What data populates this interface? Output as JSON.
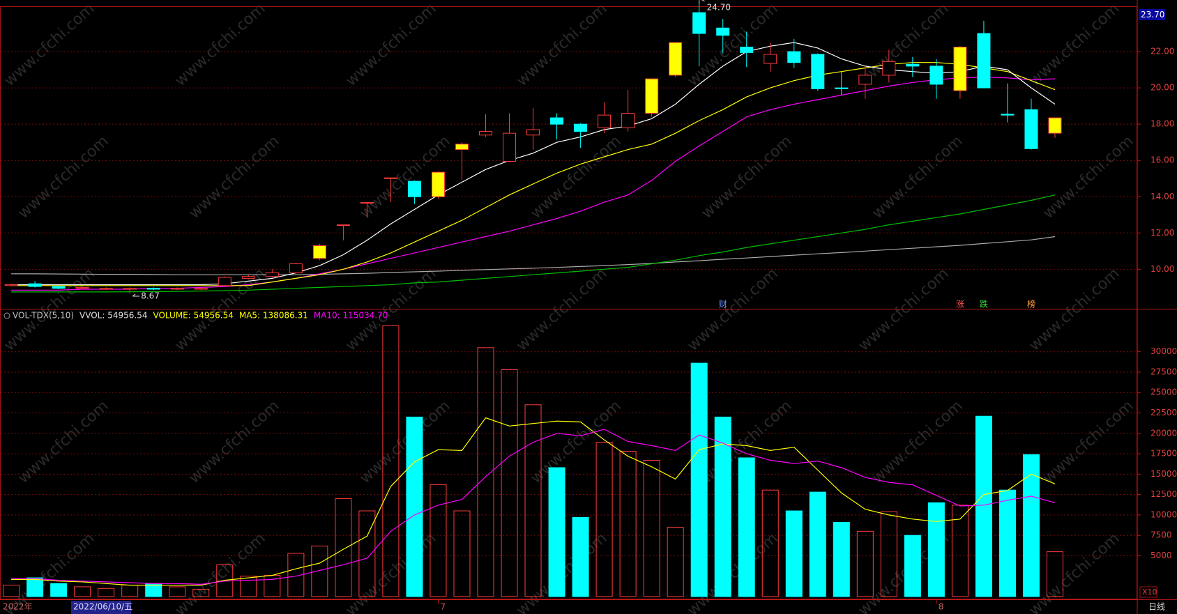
{
  "chart_data": [
    {
      "type": "candlestick",
      "top_label": "23.70",
      "ylim": [
        7.9,
        24.5
      ],
      "yticks": [
        {
          "value": 10,
          "label": "10.00"
        },
        {
          "value": 12,
          "label": "12.00"
        },
        {
          "value": 14,
          "label": "14.00"
        },
        {
          "value": 16,
          "label": "16.00"
        },
        {
          "value": 18,
          "label": "18.00"
        },
        {
          "value": 20,
          "label": "20.00"
        },
        {
          "value": 22,
          "label": "22.00"
        }
      ],
      "grid": true,
      "up_color": "#ff3c3c",
      "open": [
        9.1,
        9.2,
        9.05,
        8.95,
        8.9,
        8.9,
        8.95,
        8.9,
        8.9,
        9.1,
        9.5,
        9.6,
        9.8,
        10.6,
        12.45,
        13.68,
        15.04,
        14.85,
        14.0,
        16.6,
        17.4,
        15.95,
        17.4,
        18.35,
        18.0,
        17.8,
        17.8,
        18.6,
        20.7,
        24.15,
        23.3,
        22.25,
        21.35,
        22.0,
        21.85,
        20.0,
        20.2,
        20.7,
        21.3,
        21.2,
        19.85,
        23.0,
        18.55,
        18.8,
        17.5
      ],
      "high": [
        9.2,
        9.35,
        9.1,
        9.05,
        9.0,
        9.0,
        9.0,
        9.0,
        9.0,
        9.6,
        9.7,
        10.0,
        10.35,
        11.4,
        12.45,
        13.7,
        15.05,
        14.9,
        15.4,
        17.0,
        18.55,
        18.6,
        18.9,
        18.6,
        18.05,
        19.2,
        19.9,
        20.5,
        22.5,
        24.7,
        23.8,
        23.1,
        22.5,
        22.7,
        21.9,
        20.9,
        21.2,
        22.1,
        21.7,
        21.6,
        22.3,
        23.7,
        20.25,
        19.4,
        18.35
      ],
      "low": [
        9.05,
        9.0,
        8.9,
        8.9,
        8.85,
        8.67,
        8.85,
        8.85,
        8.85,
        9.05,
        9.45,
        9.55,
        9.75,
        10.5,
        11.6,
        12.85,
        13.7,
        13.6,
        13.9,
        14.95,
        17.3,
        15.9,
        16.6,
        17.15,
        16.7,
        17.5,
        17.6,
        18.4,
        20.6,
        21.2,
        21.9,
        21.15,
        20.9,
        21.1,
        19.85,
        19.6,
        19.4,
        20.3,
        20.6,
        19.4,
        19.4,
        20.0,
        18.1,
        16.6,
        17.25
      ],
      "close": [
        9.15,
        9.05,
        8.95,
        9.0,
        8.95,
        8.95,
        8.9,
        8.95,
        8.95,
        9.55,
        9.6,
        9.8,
        10.3,
        11.3,
        12.45,
        13.68,
        15.04,
        14.0,
        15.35,
        16.9,
        17.6,
        17.5,
        17.7,
        18.0,
        17.6,
        18.5,
        18.6,
        20.5,
        22.5,
        23.0,
        22.9,
        21.95,
        21.85,
        21.4,
        19.95,
        19.95,
        20.7,
        21.45,
        21.2,
        20.2,
        22.25,
        20.0,
        18.5,
        16.65,
        18.35
      ],
      "colors": [
        "#ff3c3c",
        "#00ffff",
        "#00ffff",
        "#ff3c3c",
        "#ff3c3c",
        "#ff3c3c",
        "#00ffff",
        "#ff3c3c",
        "#ff3c3c",
        "#ff3c3c",
        "#ff3c3c",
        "#ff3c3c",
        "#ff3c3c",
        "#ffff00",
        "#ff3c3c",
        "#ff3c3c",
        "#ff3c3c",
        "#00ffff",
        "#ffff00",
        "#ffff00",
        "#ff3c3c",
        "#ff3c3c",
        "#ff3c3c",
        "#00ffff",
        "#00ffff",
        "#ff3c3c",
        "#ff3c3c",
        "#ffff00",
        "#ffff00",
        "#00ffff",
        "#00ffff",
        "#00ffff",
        "#ff3c3c",
        "#00ffff",
        "#00ffff",
        "#00ffff",
        "#ff3c3c",
        "#ff3c3c",
        "#00ffff",
        "#00ffff",
        "#ffff00",
        "#00ffff",
        "#00ffff",
        "#00ffff",
        "#ffff00"
      ],
      "series": [
        {
          "color": "#aaaaaa",
          "values": [
            9.75,
            9.75,
            9.74,
            9.73,
            9.72,
            9.72,
            9.71,
            9.7,
            9.7,
            9.7,
            9.7,
            9.7,
            9.7,
            9.72,
            9.75,
            9.78,
            9.82,
            9.86,
            9.9,
            9.94,
            9.98,
            10.02,
            10.06,
            10.1,
            10.15,
            10.2,
            10.26,
            10.32,
            10.4,
            10.47,
            10.55,
            10.62,
            10.7,
            10.78,
            10.85,
            10.92,
            11.0,
            11.08,
            11.16,
            11.24,
            11.32,
            11.42,
            11.52,
            11.62,
            11.8
          ]
        },
        {
          "color": "#00c000",
          "values": [
            8.75,
            8.75,
            8.75,
            8.75,
            8.75,
            8.76,
            8.77,
            8.78,
            8.8,
            8.82,
            8.85,
            8.9,
            8.95,
            9.0,
            9.05,
            9.1,
            9.15,
            9.25,
            9.3,
            9.4,
            9.5,
            9.6,
            9.7,
            9.8,
            9.9,
            10.0,
            10.1,
            10.3,
            10.5,
            10.75,
            10.95,
            11.2,
            11.4,
            11.6,
            11.8,
            12.0,
            12.2,
            12.45,
            12.65,
            12.85,
            13.05,
            13.3,
            13.55,
            13.8,
            14.1
          ]
        },
        {
          "color": "#ff00ff",
          "values": [
            8.85,
            8.85,
            8.85,
            8.9,
            8.9,
            8.9,
            8.95,
            8.95,
            9.0,
            9.05,
            9.15,
            9.3,
            9.5,
            9.75,
            10.0,
            10.3,
            10.6,
            10.9,
            11.2,
            11.5,
            11.8,
            12.1,
            12.45,
            12.8,
            13.2,
            13.7,
            14.1,
            14.9,
            15.95,
            16.8,
            17.6,
            18.4,
            18.8,
            19.1,
            19.35,
            19.6,
            19.85,
            20.1,
            20.3,
            20.45,
            20.55,
            20.6,
            20.55,
            20.45,
            20.5
          ]
        },
        {
          "color": "#ffff00",
          "values": [
            9.1,
            9.1,
            9.1,
            9.1,
            9.1,
            9.1,
            9.1,
            9.1,
            9.1,
            9.1,
            9.1,
            9.3,
            9.5,
            9.7,
            10.0,
            10.4,
            10.9,
            11.5,
            12.1,
            12.7,
            13.4,
            14.1,
            14.7,
            15.3,
            15.8,
            16.2,
            16.6,
            16.9,
            17.5,
            18.2,
            18.8,
            19.5,
            20.0,
            20.4,
            20.7,
            20.9,
            21.1,
            21.3,
            21.4,
            21.4,
            21.3,
            21.1,
            20.9,
            20.4,
            19.9
          ]
        },
        {
          "color": "#ffffff",
          "values": [
            9.15,
            9.15,
            9.15,
            9.15,
            9.15,
            9.15,
            9.15,
            9.15,
            9.15,
            9.2,
            9.35,
            9.5,
            9.8,
            10.2,
            10.8,
            11.6,
            12.5,
            13.3,
            14.1,
            14.8,
            15.5,
            16.0,
            16.4,
            17.0,
            17.3,
            17.7,
            17.9,
            18.3,
            19.1,
            20.2,
            21.2,
            22.0,
            22.3,
            22.5,
            22.2,
            21.6,
            21.2,
            21.0,
            20.9,
            20.8,
            20.9,
            21.2,
            21.0,
            20.0,
            19.1
          ]
        }
      ],
      "annotations": [
        {
          "value": 24.7,
          "label": "24.70"
        },
        {
          "value": 8.67,
          "label": "8.67"
        }
      ],
      "events": [
        null,
        null,
        null,
        null,
        null,
        null,
        null,
        null,
        null,
        null,
        null,
        null,
        null,
        null,
        null,
        null,
        null,
        null,
        null,
        null,
        null,
        null,
        null,
        null,
        null,
        null,
        null,
        null,
        null,
        null,
        "财",
        null,
        null,
        null,
        null,
        null,
        null,
        null,
        null,
        null,
        "涨",
        "跌",
        null,
        "榜",
        null
      ]
    },
    {
      "type": "bar",
      "header": {
        "name": "VOL-TDX(5,10)",
        "vvol": "VVOL: 54956.54",
        "volume": "VOLUME: 54956.54",
        "ma5": "MA5: 138086.31",
        "ma10": "MA10: 115034.70"
      },
      "unit": "X10",
      "ylim": [
        0,
        34500
      ],
      "yticks": [
        5000,
        7500,
        10000,
        12500,
        15000,
        17500,
        20000,
        22500,
        25000,
        27500,
        30000
      ],
      "grid": true,
      "up_color": "#ff3c3c",
      "categories": [
        null,
        null,
        null,
        null,
        null,
        null,
        null,
        null,
        null,
        null,
        null,
        null,
        null,
        null,
        null,
        null,
        null,
        null,
        "7",
        null,
        null,
        null,
        null,
        null,
        null,
        null,
        null,
        null,
        null,
        null,
        null,
        null,
        null,
        null,
        null,
        null,
        null,
        null,
        null,
        "8",
        null,
        null,
        null,
        null,
        null
      ],
      "values": [
        1400,
        2300,
        1600,
        1200,
        1000,
        1400,
        1600,
        1200,
        900,
        3900,
        2500,
        2600,
        5300,
        6200,
        12000,
        10500,
        33200,
        22000,
        13700,
        10500,
        30500,
        27800,
        23500,
        15800,
        9700,
        18900,
        17800,
        16700,
        8500,
        28600,
        22000,
        17000,
        13050,
        10500,
        12800,
        9100,
        8000,
        10400,
        7500,
        11500,
        11200,
        22100,
        13050,
        17400,
        5496
      ],
      "colors": [
        "#ff3c3c",
        "#00ffff",
        "#00ffff",
        "#ff3c3c",
        "#ff3c3c",
        "#ff3c3c",
        "#00ffff",
        "#ff3c3c",
        "#ff3c3c",
        "#ff3c3c",
        "#ff3c3c",
        "#ff3c3c",
        "#ff3c3c",
        "#ff3c3c",
        "#ff3c3c",
        "#ff3c3c",
        "#ff3c3c",
        "#00ffff",
        "#ff3c3c",
        "#ff3c3c",
        "#ff3c3c",
        "#ff3c3c",
        "#ff3c3c",
        "#00ffff",
        "#00ffff",
        "#ff3c3c",
        "#ff3c3c",
        "#ff3c3c",
        "#ff3c3c",
        "#00ffff",
        "#00ffff",
        "#00ffff",
        "#ff3c3c",
        "#00ffff",
        "#00ffff",
        "#00ffff",
        "#ff3c3c",
        "#ff3c3c",
        "#00ffff",
        "#00ffff",
        "#ff3c3c",
        "#00ffff",
        "#00ffff",
        "#00ffff",
        "#ff3c3c"
      ],
      "series": [
        {
          "color": "#ffff00",
          "values": [
            2100,
            2100,
            1900,
            1800,
            1600,
            1400,
            1400,
            1400,
            1400,
            2000,
            2300,
            2600,
            3400,
            4100,
            5800,
            7400,
            13500,
            16500,
            18000,
            17900,
            21900,
            20900,
            21200,
            21500,
            21400,
            19200,
            17200,
            15900,
            14400,
            18000,
            18700,
            18500,
            17900,
            18300,
            15500,
            12700,
            10700,
            10000,
            9500,
            9200,
            9500,
            12500,
            13000,
            15000,
            13809
          ]
        },
        {
          "color": "#ff00ff",
          "values": [
            2200,
            2200,
            2000,
            1900,
            1800,
            1700,
            1600,
            1600,
            1500,
            1900,
            2000,
            2100,
            2500,
            3200,
            3900,
            4700,
            8000,
            10000,
            11200,
            11900,
            14700,
            17200,
            18900,
            20000,
            19700,
            20500,
            19000,
            18500,
            17900,
            19800,
            18800,
            17500,
            16700,
            16300,
            16600,
            15800,
            14600,
            14000,
            13700,
            12400,
            11100,
            11200,
            11800,
            12300,
            11503
          ]
        }
      ]
    }
  ],
  "footer": {
    "year": "2022年",
    "date": "2022/06/10/五",
    "period": "日线"
  },
  "watermark": "www.cfchi.com"
}
